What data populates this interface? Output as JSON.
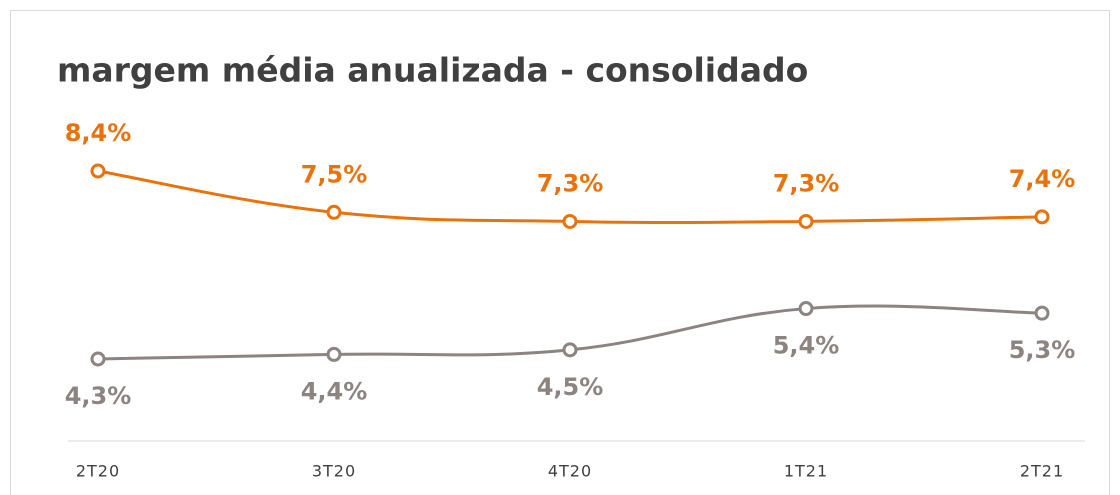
{
  "chart_data": {
    "type": "line",
    "title": "margem média anualizada - consolidado",
    "categories": [
      "2T20",
      "3T20",
      "4T20",
      "1T21",
      "2T21"
    ],
    "series": [
      {
        "color": "#e8730c",
        "values": [
          8.4,
          7.5,
          7.3,
          7.3,
          7.4
        ],
        "value_labels": [
          "8,4%",
          "7,5%",
          "7,3%",
          "7,3%",
          "7,4%"
        ]
      },
      {
        "color": "#8c8480",
        "values": [
          4.3,
          4.4,
          4.5,
          5.4,
          5.3
        ],
        "value_labels": [
          "4,3%",
          "4,4%",
          "4,5%",
          "5,4%",
          "5,3%"
        ]
      }
    ]
  }
}
